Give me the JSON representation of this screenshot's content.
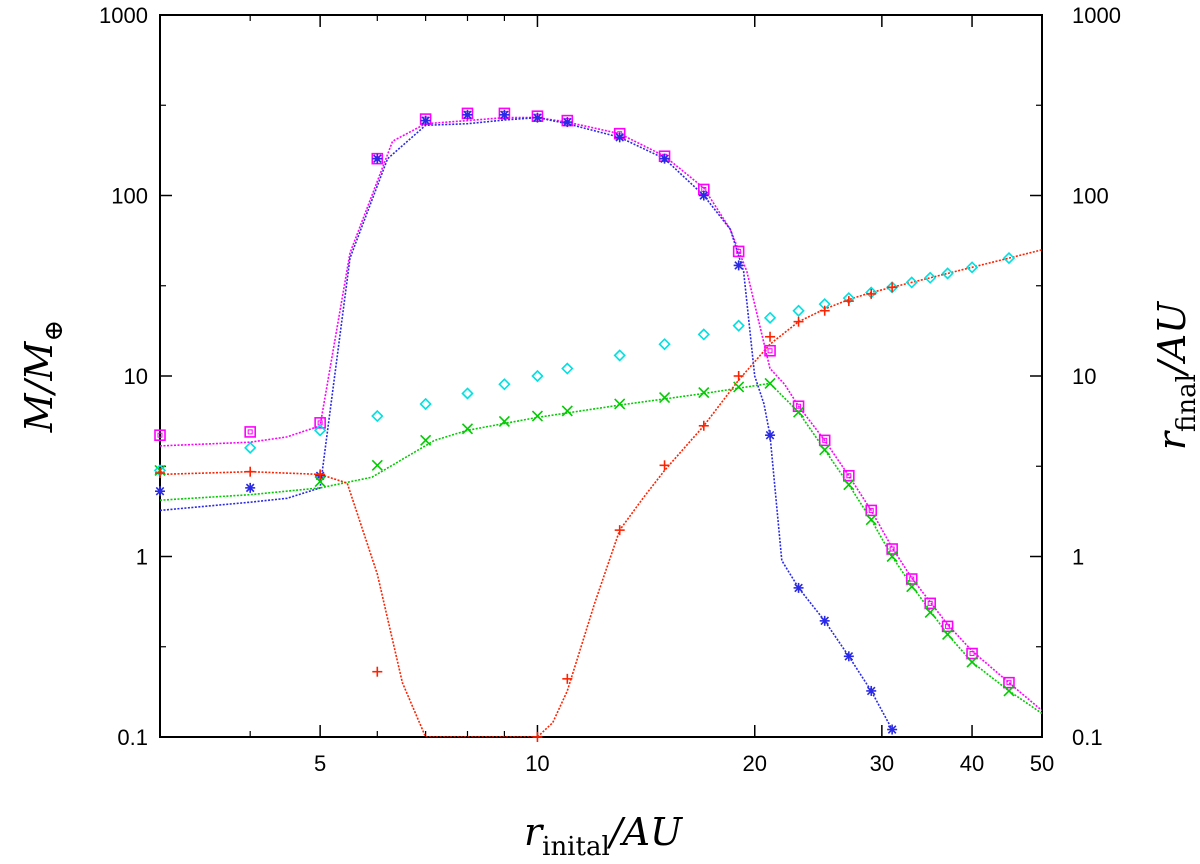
{
  "chart_data": {
    "type": "line",
    "x_scale": "log",
    "y_scale": "log",
    "xlim": [
      3.0,
      50
    ],
    "ylim": [
      0.1,
      1000
    ],
    "x_ticks": [
      5,
      10,
      20,
      30,
      40,
      50
    ],
    "x_tick_labels": [
      "5",
      "10",
      "20",
      "30",
      "40",
      "50"
    ],
    "y_ticks": [
      0.1,
      1,
      10,
      100,
      1000
    ],
    "y_tick_labels": [
      "0.1",
      "1",
      "10",
      "100",
      "1000"
    ],
    "y2_tick_labels": [
      "0.1",
      "1",
      "10",
      "100",
      "1000"
    ],
    "ylabel_main": "M/M",
    "ylabel_sub": "⊕",
    "y2label_main": "r",
    "y2label_sub": "final",
    "y2label_tail": "/AU",
    "xlabel_main": "r",
    "xlabel_sub": "inital",
    "xlabel_tail": "/AU",
    "grid": false,
    "series": [
      {
        "color": "#ff00ff",
        "marker": "square",
        "points": [
          [
            3.0,
            4.7
          ],
          [
            4.0,
            4.9
          ],
          [
            5.0,
            5.5
          ],
          [
            6.0,
            160
          ],
          [
            7.0,
            265
          ],
          [
            8.0,
            285
          ],
          [
            9.0,
            285
          ],
          [
            10.0,
            275
          ],
          [
            11.0,
            260
          ],
          [
            13.0,
            220
          ],
          [
            15.0,
            165
          ],
          [
            17.0,
            108
          ],
          [
            19.0,
            49
          ],
          [
            21.0,
            13.8
          ],
          [
            23.0,
            6.8
          ],
          [
            25.0,
            4.4
          ],
          [
            27.0,
            2.8
          ],
          [
            29.0,
            1.8
          ],
          [
            31.0,
            1.1
          ],
          [
            33.0,
            0.75
          ],
          [
            35.0,
            0.55
          ],
          [
            37.0,
            0.41
          ],
          [
            40.0,
            0.29
          ],
          [
            45.0,
            0.2
          ]
        ],
        "curve": [
          [
            3.0,
            4.1
          ],
          [
            4.0,
            4.3
          ],
          [
            4.5,
            4.6
          ],
          [
            5.0,
            5.3
          ],
          [
            5.5,
            48
          ],
          [
            6.3,
            200
          ],
          [
            7.0,
            250
          ],
          [
            8.0,
            260
          ],
          [
            9.0,
            270
          ],
          [
            10.0,
            270
          ],
          [
            11.0,
            255
          ],
          [
            13.0,
            220
          ],
          [
            15.0,
            165
          ],
          [
            17.0,
            110
          ],
          [
            18.5,
            65
          ],
          [
            19.5,
            38
          ],
          [
            20.2,
            21
          ],
          [
            21.0,
            11
          ],
          [
            22.0,
            9
          ],
          [
            23.0,
            6.8
          ],
          [
            25.0,
            4.4
          ],
          [
            27.0,
            2.8
          ],
          [
            29.0,
            1.8
          ],
          [
            31.0,
            1.12
          ],
          [
            33.0,
            0.76
          ],
          [
            35.0,
            0.56
          ],
          [
            37.0,
            0.42
          ],
          [
            40.0,
            0.3
          ],
          [
            45.0,
            0.2
          ],
          [
            50.0,
            0.14
          ]
        ]
      },
      {
        "color": "#2a2ae6",
        "marker": "asterisk",
        "points": [
          [
            3.0,
            2.3
          ],
          [
            4.0,
            2.4
          ],
          [
            5.0,
            2.8
          ],
          [
            6.0,
            160
          ],
          [
            7.0,
            260
          ],
          [
            8.0,
            280
          ],
          [
            9.0,
            280
          ],
          [
            10.0,
            270
          ],
          [
            11.0,
            255
          ],
          [
            13.0,
            210
          ],
          [
            15.0,
            160
          ],
          [
            17.0,
            100
          ],
          [
            19.0,
            41
          ],
          [
            21.0,
            4.7
          ],
          [
            23.0,
            0.67
          ],
          [
            25.0,
            0.44
          ],
          [
            27.0,
            0.28
          ],
          [
            29.0,
            0.18
          ],
          [
            31.0,
            0.11
          ]
        ],
        "curve": [
          [
            3.0,
            1.8
          ],
          [
            4.0,
            2.0
          ],
          [
            4.5,
            2.1
          ],
          [
            5.0,
            2.4
          ],
          [
            5.5,
            45
          ],
          [
            6.2,
            160
          ],
          [
            7.0,
            245
          ],
          [
            8.0,
            250
          ],
          [
            9.0,
            262
          ],
          [
            10.0,
            270
          ],
          [
            11.0,
            250
          ],
          [
            13.0,
            210
          ],
          [
            15.0,
            160
          ],
          [
            17.0,
            100
          ],
          [
            18.5,
            65
          ],
          [
            19.3,
            38
          ],
          [
            20.0,
            10
          ],
          [
            20.6,
            7
          ],
          [
            21.0,
            4.7
          ],
          [
            21.8,
            0.95
          ],
          [
            23.0,
            0.67
          ],
          [
            25.0,
            0.44
          ],
          [
            27.0,
            0.28
          ],
          [
            29.0,
            0.18
          ],
          [
            31.0,
            0.11
          ]
        ]
      },
      {
        "color": "#00cc00",
        "marker": "x",
        "points": [
          [
            3.0,
            3.0
          ],
          [
            5.0,
            2.6
          ],
          [
            6.0,
            3.2
          ],
          [
            7.0,
            4.4
          ],
          [
            8.0,
            5.1
          ],
          [
            9.0,
            5.6
          ],
          [
            10.0,
            6.0
          ],
          [
            11.0,
            6.4
          ],
          [
            13.0,
            7.0
          ],
          [
            15.0,
            7.6
          ],
          [
            17.0,
            8.1
          ],
          [
            19.0,
            8.7
          ],
          [
            21.0,
            9.1
          ],
          [
            23.0,
            6.3
          ],
          [
            25.0,
            3.9
          ],
          [
            27.0,
            2.5
          ],
          [
            29.0,
            1.6
          ],
          [
            31.0,
            1.0
          ],
          [
            33.0,
            0.68
          ],
          [
            35.0,
            0.49
          ],
          [
            37.0,
            0.37
          ],
          [
            40.0,
            0.26
          ],
          [
            45.0,
            0.18
          ]
        ],
        "curve": [
          [
            3.0,
            2.05
          ],
          [
            4.0,
            2.2
          ],
          [
            5.0,
            2.4
          ],
          [
            5.9,
            2.75
          ],
          [
            7.2,
            4.4
          ],
          [
            8.0,
            5.0
          ],
          [
            10.0,
            5.9
          ],
          [
            13.0,
            6.9
          ],
          [
            17.0,
            8.0
          ],
          [
            21.0,
            9.1
          ],
          [
            23.0,
            6.3
          ],
          [
            25.0,
            3.9
          ],
          [
            27.0,
            2.5
          ],
          [
            29.0,
            1.6
          ],
          [
            31.0,
            1.0
          ],
          [
            33.0,
            0.69
          ],
          [
            35.0,
            0.5
          ],
          [
            37.0,
            0.37
          ],
          [
            40.0,
            0.26
          ],
          [
            45.0,
            0.18
          ],
          [
            50.0,
            0.135
          ]
        ]
      },
      {
        "color": "#00e0e0",
        "marker": "diamond",
        "points": [
          [
            3.0,
            3.0
          ],
          [
            4.0,
            4.0
          ],
          [
            5.0,
            5.0
          ],
          [
            6.0,
            6.0
          ],
          [
            7.0,
            7.0
          ],
          [
            8.0,
            8.0
          ],
          [
            9.0,
            9.0
          ],
          [
            10.0,
            10.0
          ],
          [
            11.0,
            11.0
          ],
          [
            13.0,
            13.0
          ],
          [
            15.0,
            15.0
          ],
          [
            17.0,
            17.0
          ],
          [
            19.0,
            19.0
          ],
          [
            21.0,
            21.0
          ],
          [
            23.0,
            23.0
          ],
          [
            25.0,
            25.0
          ],
          [
            27.0,
            27.0
          ],
          [
            29.0,
            29.0
          ],
          [
            31.0,
            31.0
          ],
          [
            33.0,
            33.0
          ],
          [
            35.0,
            35.0
          ],
          [
            37.0,
            37.0
          ],
          [
            40.0,
            40.0
          ],
          [
            45.0,
            45.0
          ]
        ],
        "curve": []
      },
      {
        "color": "#ff2200",
        "marker": "plus",
        "points": [
          [
            3.0,
            2.9
          ],
          [
            4.0,
            2.95
          ],
          [
            5.0,
            2.85
          ],
          [
            6.0,
            0.23
          ],
          [
            10.0,
            0.1
          ],
          [
            11.0,
            0.21
          ],
          [
            13.0,
            1.4
          ],
          [
            15.0,
            3.2
          ],
          [
            17.0,
            5.3
          ],
          [
            19.0,
            10.0
          ],
          [
            21.0,
            16.5
          ],
          [
            23.0,
            20.0
          ],
          [
            25.0,
            23.0
          ],
          [
            27.0,
            26.0
          ],
          [
            29.0,
            28.5
          ],
          [
            31.0,
            31.0
          ]
        ],
        "curve": [
          [
            3.0,
            2.85
          ],
          [
            4.0,
            2.95
          ],
          [
            5.0,
            2.85
          ],
          [
            5.45,
            2.55
          ],
          [
            6.0,
            0.8
          ],
          [
            6.5,
            0.2
          ],
          [
            7.0,
            0.1
          ],
          [
            10.0,
            0.1
          ],
          [
            10.5,
            0.12
          ],
          [
            11.0,
            0.18
          ],
          [
            12.0,
            0.55
          ],
          [
            13.0,
            1.4
          ],
          [
            14.0,
            2.1
          ],
          [
            15.0,
            3.0
          ],
          [
            17.0,
            5.3
          ],
          [
            19.0,
            9.5
          ],
          [
            21.0,
            15.0
          ],
          [
            23.0,
            20.0
          ],
          [
            25.0,
            23.5
          ],
          [
            27.0,
            26.5
          ],
          [
            29.0,
            29
          ],
          [
            31.0,
            31
          ],
          [
            35.0,
            35
          ],
          [
            40.0,
            40
          ],
          [
            45.0,
            45
          ],
          [
            50.0,
            50
          ]
        ]
      }
    ]
  }
}
